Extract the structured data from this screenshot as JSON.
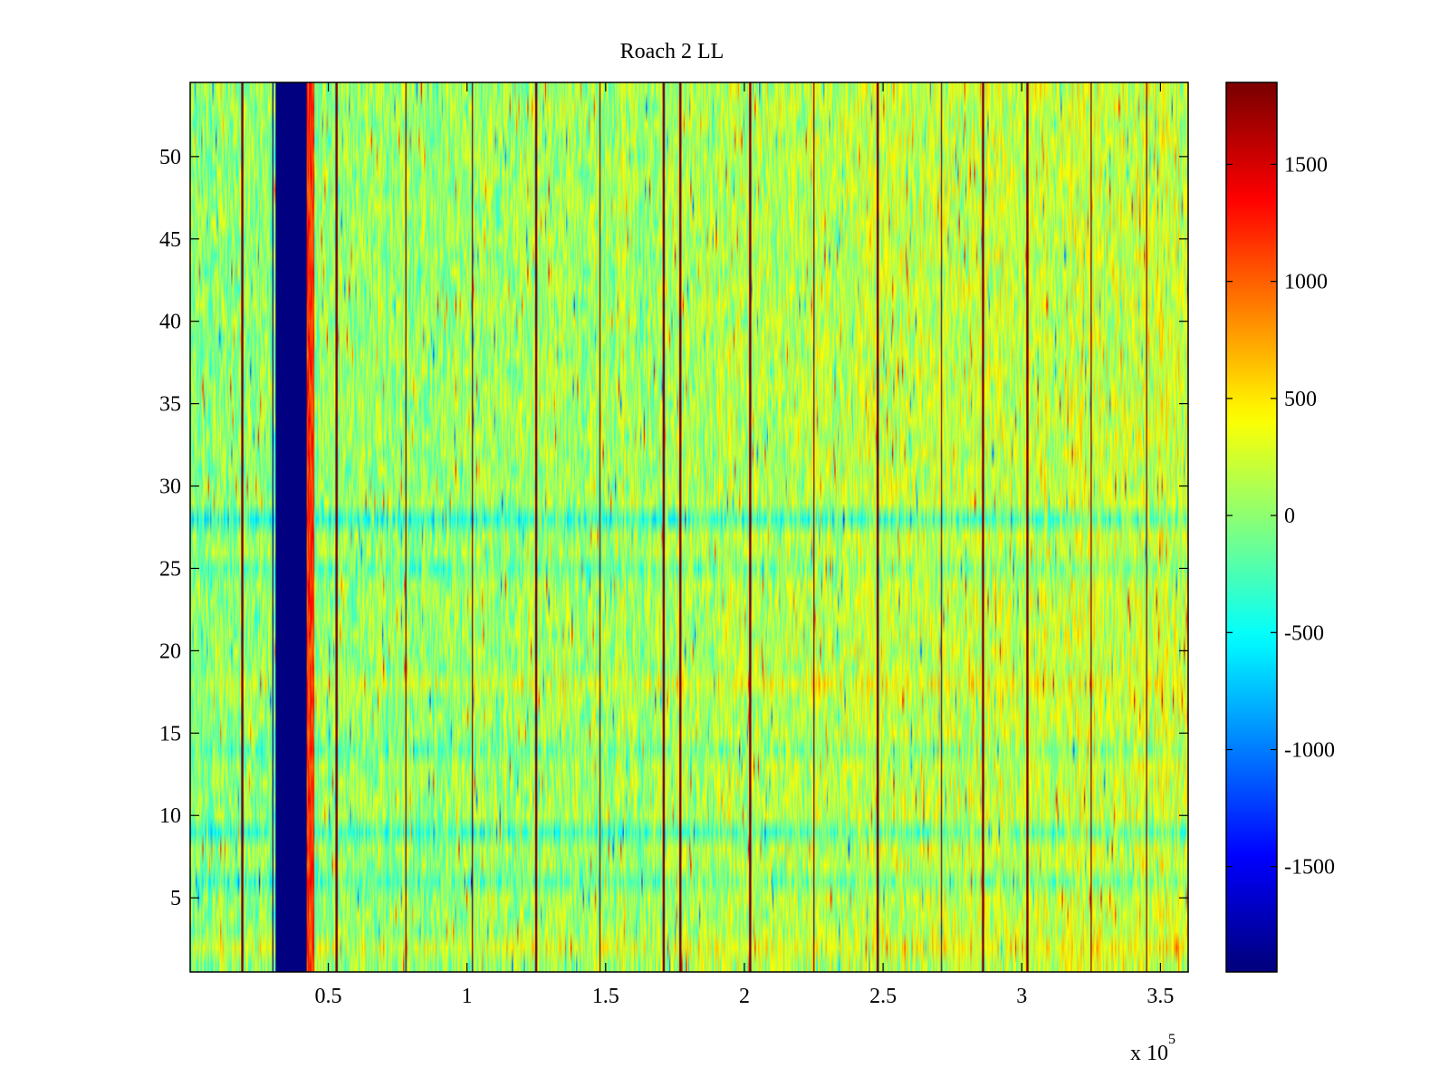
{
  "chart_data": {
    "type": "heatmap",
    "title": "Roach 2 LL",
    "xlabel": "",
    "ylabel": "",
    "x_exponent_label": "x 10",
    "x_exponent_power": "5",
    "xlim": [
      200,
      360000
    ],
    "ylim": [
      0.5,
      54.5
    ],
    "rows": 54,
    "columns": 900,
    "x_ticks": [
      0.5,
      1,
      1.5,
      2,
      2.5,
      3,
      3.5
    ],
    "x_tick_labels": [
      "0.5",
      "1",
      "1.5",
      "2",
      "2.5",
      "3",
      "3.5"
    ],
    "y_ticks": [
      5,
      10,
      15,
      20,
      25,
      30,
      35,
      40,
      45,
      50
    ],
    "y_tick_labels": [
      "5",
      "10",
      "15",
      "20",
      "25",
      "30",
      "35",
      "40",
      "45",
      "50"
    ],
    "colorbar": {
      "colormap": "jet",
      "clim": [
        -1950,
        1850
      ],
      "ticks": [
        -1500,
        -1000,
        -500,
        0,
        500,
        1000,
        1500
      ],
      "tick_labels": [
        "-1500",
        "-1000",
        "-500",
        "0",
        "500",
        "1000",
        "1500"
      ]
    },
    "features": {
      "baseline_value": 0,
      "trend_at_right_edge": 250,
      "noise_amplitude": 380,
      "dropout_band": {
        "x_start": 31000,
        "x_end": 42000,
        "value": -1950
      },
      "edge_band_after_dropout": {
        "x_start": 42000,
        "x_end": 45000,
        "value": 1200
      },
      "spike_lines": {
        "x": [
          19000,
          53000,
          78000,
          102000,
          125000,
          148000,
          171000,
          177000,
          202000,
          225000,
          248000,
          271000,
          286000,
          302000,
          325000,
          345000
        ],
        "value": 1850
      },
      "dark_lines": {
        "x": [
          30000
        ],
        "value": -1950
      },
      "row_offsets": [
        {
          "row": 2,
          "offset": 250
        },
        {
          "row": 6,
          "offset": -300
        },
        {
          "row": 9,
          "offset": -420
        },
        {
          "row": 14,
          "offset": -200
        },
        {
          "row": 18,
          "offset": 200
        },
        {
          "row": 25,
          "offset": -250
        },
        {
          "row": 28,
          "offset": -520
        }
      ]
    }
  }
}
